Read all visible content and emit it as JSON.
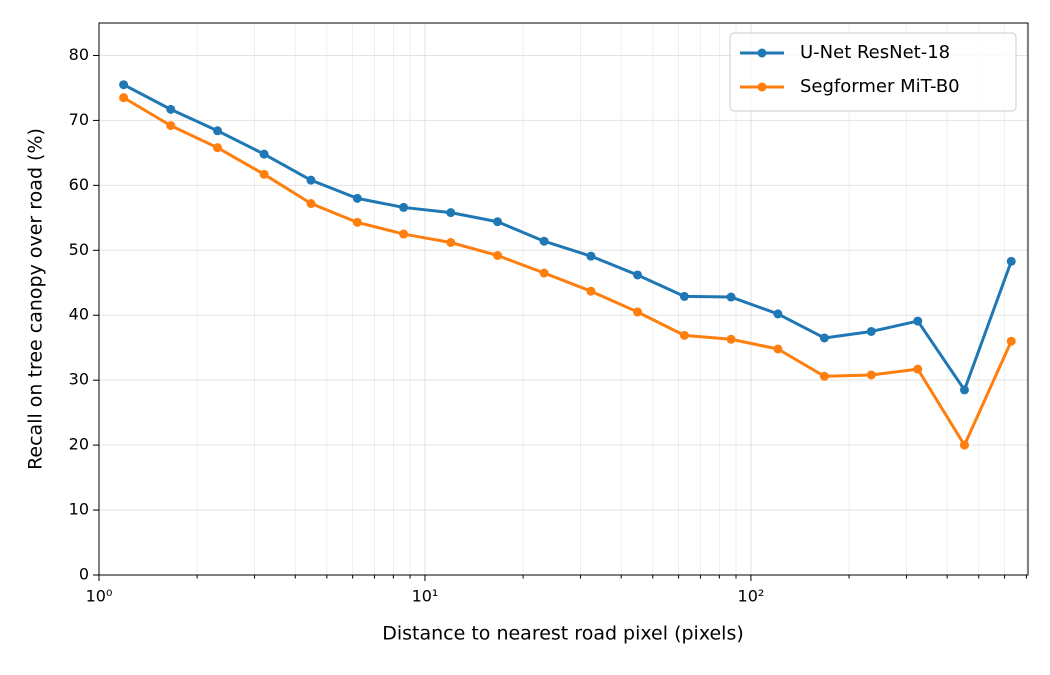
{
  "chart_data": {
    "type": "line",
    "xlabel": "Distance to nearest road pixel (pixels)",
    "ylabel": "Recall on tree canopy over road (%)",
    "xscale": "log",
    "x": [
      1.19,
      1.66,
      2.31,
      3.21,
      4.47,
      6.2,
      8.6,
      12.0,
      16.7,
      23.2,
      32.3,
      44.9,
      62.5,
      86.9,
      121,
      168,
      234,
      325,
      452,
      629
    ],
    "series": [
      {
        "name": "U-Net ResNet-18",
        "color": "#1f77b4",
        "values": [
          75.5,
          71.7,
          68.4,
          64.8,
          60.8,
          58,
          56.6,
          55.8,
          54.4,
          51.4,
          49.1,
          46.2,
          42.9,
          42.8,
          40.2,
          36.5,
          37.5,
          39.1,
          28.5,
          48.3
        ]
      },
      {
        "name": "Segformer MiT-B0",
        "color": "#ff7f0e",
        "values": [
          73.5,
          69.2,
          65.8,
          61.7,
          57.2,
          54.3,
          52.5,
          51.2,
          49.2,
          46.5,
          43.7,
          40.5,
          36.9,
          36.3,
          34.8,
          30.6,
          30.8,
          31.7,
          20,
          36
        ]
      }
    ],
    "xlim": [
      1,
      708
    ],
    "ylim": [
      0,
      85
    ],
    "xticks": [
      {
        "value": 1,
        "label": "10⁰"
      },
      {
        "value": 10,
        "label": "10¹"
      },
      {
        "value": 100,
        "label": "10²"
      }
    ],
    "x_minor_ticks": [
      2,
      3,
      4,
      5,
      6,
      7,
      8,
      9,
      20,
      30,
      40,
      50,
      60,
      70,
      80,
      90,
      200,
      300,
      400,
      500,
      600,
      700
    ],
    "yticks": [
      0,
      10,
      20,
      30,
      40,
      50,
      60,
      70,
      80
    ],
    "grid": true,
    "legend": "upper-right"
  }
}
